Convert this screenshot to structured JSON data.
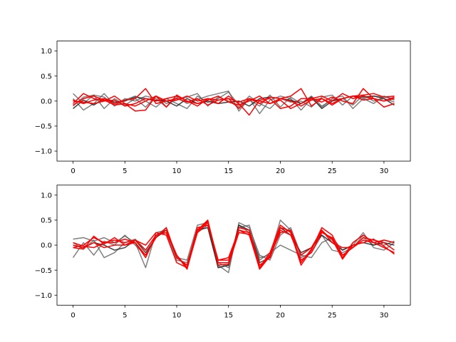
{
  "chart_data": [
    {
      "type": "line",
      "title": "",
      "xlabel": "",
      "ylabel": "",
      "xlim": [
        -1.55,
        32.55
      ],
      "ylim": [
        -1.2,
        1.2
      ],
      "xticks": [
        0,
        5,
        10,
        15,
        20,
        25,
        30
      ],
      "yticks": [
        -1.0,
        -0.5,
        0.0,
        0.5,
        1.0
      ],
      "xtick_labels": [
        "0",
        "5",
        "10",
        "15",
        "20",
        "25",
        "30"
      ],
      "ytick_labels": [
        "−1.0",
        "−0.5",
        "0.0",
        "0.5",
        "1.0"
      ],
      "grid": false,
      "legend": "none",
      "series": [
        {
          "color": "#555555",
          "opacity": 0.75,
          "values": [
            0.15,
            -0.05,
            0.12,
            0.08,
            -0.1,
            0.05,
            0.0,
            0.1,
            0.05,
            -0.12,
            0.08,
            -0.05,
            0.03,
            0.1,
            0.15,
            0.2,
            -0.2,
            0.05,
            -0.25,
            0.02,
            0.1,
            0.05,
            -0.18,
            0.05,
            -0.12,
            0.05,
            0.1,
            -0.15,
            0.05,
            0.1,
            0.08,
            0.05
          ]
        },
        {
          "color": "#555555",
          "opacity": 0.75,
          "values": [
            0.05,
            -0.18,
            -0.05,
            0.15,
            -0.08,
            0.02,
            0.1,
            0.0,
            -0.12,
            0.05,
            -0.05,
            -0.15,
            0.1,
            -0.03,
            0.05,
            0.18,
            -0.08,
            0.02,
            -0.1,
            0.12,
            -0.12,
            0.08,
            -0.05,
            0.1,
            -0.1,
            0.02,
            0.05,
            -0.08,
            0.12,
            0.0,
            0.05,
            -0.02
          ]
        },
        {
          "color": "#555555",
          "opacity": 0.75,
          "values": [
            -0.1,
            0.08,
            0.12,
            -0.15,
            0.05,
            -0.08,
            0.05,
            -0.12,
            0.1,
            -0.05,
            0.02,
            0.08,
            0.15,
            -0.1,
            0.08,
            0.0,
            -0.12,
            0.1,
            -0.05,
            -0.15,
            0.05,
            -0.02,
            0.0,
            -0.12,
            0.08,
            0.12,
            -0.08,
            0.1,
            0.05,
            -0.05,
            0.1,
            0.02
          ]
        },
        {
          "color": "#222222",
          "opacity": 0.85,
          "values": [
            -0.15,
            0.02,
            -0.08,
            0.05,
            -0.02,
            0.0,
            0.08,
            0.05,
            0.02,
            0.0,
            -0.1,
            0.05,
            -0.05,
            0.0,
            -0.05,
            -0.02,
            0.0,
            -0.1,
            0.05,
            0.08,
            0.05,
            0.02,
            -0.05,
            0.08,
            -0.15,
            0.0,
            0.05,
            0.1,
            0.08,
            0.1,
            0.05,
            -0.08
          ]
        },
        {
          "color": "#ff0000",
          "opacity": 1,
          "values": [
            -0.05,
            0.15,
            0.05,
            0.0,
            0.1,
            -0.05,
            -0.2,
            -0.18,
            0.1,
            0.0,
            0.02,
            0.1,
            0.0,
            0.05,
            -0.05,
            0.1,
            -0.05,
            -0.28,
            0.02,
            0.05,
            -0.15,
            -0.1,
            0.05,
            0.05,
            0.1,
            0.0,
            0.15,
            0.05,
            0.1,
            0.05,
            -0.12,
            -0.05
          ]
        },
        {
          "color": "#ff0000",
          "opacity": 1,
          "values": [
            0.02,
            -0.05,
            0.02,
            0.05,
            -0.05,
            0.02,
            0.05,
            0.25,
            -0.05,
            0.0,
            0.05,
            -0.02,
            0.05,
            -0.08,
            0.02,
            0.05,
            -0.02,
            0.05,
            -0.05,
            0.08,
            0.05,
            0.1,
            0.25,
            -0.1,
            0.05,
            -0.08,
            0.05,
            0.1,
            0.12,
            0.15,
            0.08,
            0.1
          ]
        },
        {
          "color": "#ff0000",
          "opacity": 1,
          "values": [
            -0.08,
            0.05,
            0.1,
            0.02,
            -0.08,
            -0.05,
            -0.1,
            0.0,
            0.1,
            -0.12,
            0.12,
            0.0,
            -0.05,
            0.02,
            0.1,
            -0.02,
            -0.08,
            0.0,
            0.1,
            -0.05,
            0.02,
            -0.15,
            -0.05,
            0.05,
            -0.02,
            0.08,
            0.0,
            -0.05,
            0.25,
            0.05,
            0.0,
            0.05
          ]
        },
        {
          "color": "#ff0000",
          "opacity": 1,
          "values": [
            0.0,
            -0.02,
            -0.05,
            0.0,
            0.02,
            -0.1,
            -0.05,
            0.05,
            0.0,
            0.05,
            0.1,
            0.0,
            -0.1,
            0.05,
            0.02,
            0.05,
            -0.15,
            0.05,
            0.0,
            -0.05,
            0.05,
            0.0,
            -0.1,
            0.02,
            0.05,
            -0.05,
            0.05,
            0.1,
            0.02,
            0.05,
            0.0,
            0.08
          ]
        }
      ]
    },
    {
      "type": "line",
      "title": "",
      "xlabel": "",
      "ylabel": "",
      "xlim": [
        -1.55,
        32.55
      ],
      "ylim": [
        -1.2,
        1.2
      ],
      "xticks": [
        0,
        5,
        10,
        15,
        20,
        25,
        30
      ],
      "yticks": [
        -1.0,
        -0.5,
        0.0,
        0.5,
        1.0
      ],
      "xtick_labels": [
        "0",
        "5",
        "10",
        "15",
        "20",
        "25",
        "30"
      ],
      "ytick_labels": [
        "−1.0",
        "−0.5",
        "0.0",
        "0.5",
        "1.0"
      ],
      "grid": false,
      "legend": "none",
      "series": [
        {
          "color": "#555555",
          "opacity": 0.75,
          "values": [
            0.12,
            0.15,
            0.08,
            0.15,
            0.05,
            0.18,
            0.05,
            -0.45,
            0.25,
            0.3,
            -0.2,
            -0.45,
            0.35,
            0.4,
            -0.45,
            -0.4,
            0.4,
            0.25,
            -0.25,
            -0.2,
            0.5,
            0.3,
            -0.25,
            -0.15,
            0.2,
            -0.1,
            -0.15,
            -0.05,
            0.2,
            0.05,
            0.0,
            0.08
          ]
        },
        {
          "color": "#555555",
          "opacity": 0.75,
          "values": [
            -0.25,
            0.05,
            -0.2,
            0.08,
            0.0,
            0.2,
            0.0,
            -0.2,
            0.18,
            0.35,
            -0.25,
            -0.3,
            0.4,
            0.45,
            -0.4,
            -0.55,
            0.45,
            0.35,
            -0.2,
            -0.3,
            0.2,
            0.35,
            -0.2,
            -0.25,
            0.05,
            0.15,
            -0.1,
            0.0,
            0.25,
            -0.05,
            -0.1,
            0.05
          ]
        },
        {
          "color": "#555555",
          "opacity": 0.75,
          "values": [
            0.05,
            -0.08,
            0.1,
            -0.25,
            -0.15,
            0.05,
            0.12,
            -0.1,
            0.2,
            0.25,
            -0.3,
            -0.35,
            0.25,
            0.4,
            -0.35,
            -0.45,
            0.35,
            0.4,
            -0.3,
            -0.15,
            0.0,
            -0.1,
            -0.2,
            -0.05,
            0.3,
            0.1,
            -0.2,
            -0.05,
            0.15,
            0.0,
            0.1,
            0.05
          ]
        },
        {
          "color": "#222222",
          "opacity": 0.85,
          "values": [
            0.0,
            -0.05,
            0.05,
            0.0,
            -0.1,
            -0.05,
            0.1,
            -0.15,
            0.15,
            0.3,
            -0.25,
            -0.4,
            0.3,
            0.35,
            -0.45,
            -0.4,
            0.4,
            0.3,
            -0.35,
            -0.25,
            0.35,
            0.2,
            -0.15,
            -0.05,
            0.2,
            0.05,
            -0.1,
            0.0,
            0.05,
            0.0,
            0.05,
            0.0
          ]
        },
        {
          "color": "#ff0000",
          "opacity": 1,
          "values": [
            -0.05,
            0.0,
            0.15,
            0.05,
            0.1,
            0.05,
            0.1,
            -0.1,
            0.2,
            0.3,
            -0.2,
            -0.45,
            0.25,
            0.45,
            -0.3,
            -0.25,
            0.3,
            0.2,
            -0.45,
            -0.15,
            0.4,
            0.25,
            -0.4,
            -0.1,
            0.35,
            0.2,
            -0.2,
            -0.05,
            0.15,
            0.1,
            0.05,
            -0.1
          ]
        },
        {
          "color": "#ff0000",
          "opacity": 1,
          "values": [
            0.0,
            -0.05,
            0.05,
            -0.05,
            0.0,
            0.0,
            0.1,
            0.0,
            0.25,
            0.2,
            -0.35,
            -0.45,
            0.3,
            0.5,
            -0.35,
            -0.35,
            0.35,
            0.3,
            -0.4,
            -0.25,
            0.3,
            0.2,
            -0.3,
            -0.15,
            0.25,
            0.15,
            -0.25,
            0.05,
            0.2,
            0.05,
            -0.05,
            -0.15
          ]
        },
        {
          "color": "#ff0000",
          "opacity": 1,
          "values": [
            0.05,
            -0.02,
            -0.05,
            0.05,
            0.05,
            0.12,
            0.05,
            -0.2,
            0.15,
            0.35,
            -0.25,
            -0.4,
            0.35,
            0.4,
            -0.3,
            -0.3,
            0.3,
            0.25,
            -0.45,
            -0.2,
            0.25,
            0.3,
            -0.2,
            -0.05,
            0.3,
            0.05,
            -0.05,
            -0.05,
            0.1,
            0.05,
            0.1,
            0.05
          ]
        },
        {
          "color": "#ff0000",
          "opacity": 1,
          "values": [
            -0.05,
            -0.08,
            0.18,
            0.02,
            0.15,
            0.0,
            0.05,
            -0.25,
            0.2,
            0.25,
            -0.2,
            -0.48,
            0.28,
            0.48,
            -0.4,
            -0.38,
            0.25,
            0.22,
            -0.48,
            -0.22,
            0.35,
            0.28,
            -0.35,
            -0.08,
            0.28,
            0.12,
            -0.28,
            0.0,
            0.05,
            0.12,
            -0.02,
            -0.18
          ]
        }
      ]
    }
  ]
}
